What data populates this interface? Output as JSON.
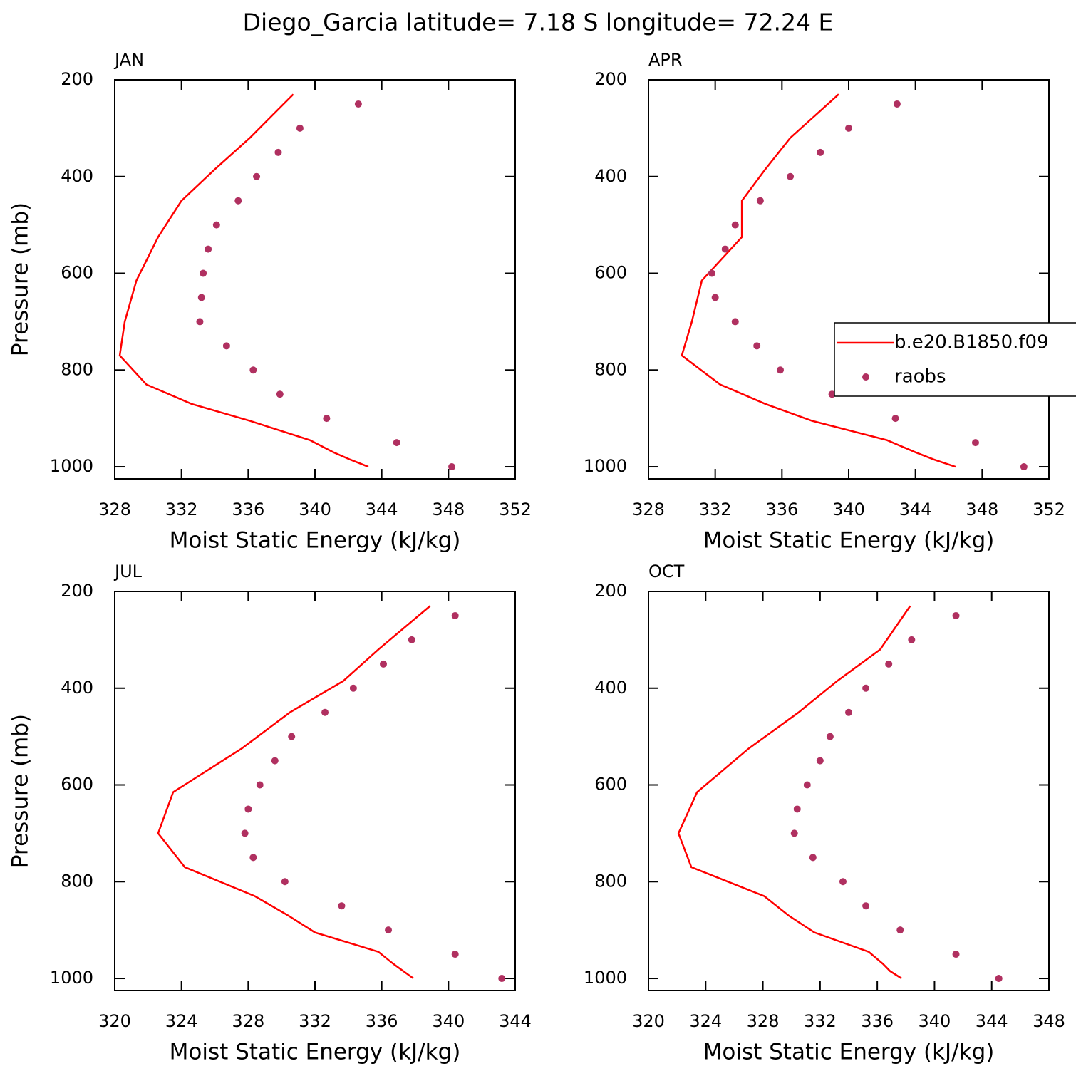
{
  "title": "Diego_Garcia  latitude= 7.18 S longitude= 72.24 E",
  "chart_data": [
    {
      "type": "line",
      "title": "JAN",
      "xlabel": "Moist Static Energy (kJ/kg)",
      "ylabel": "Pressure (mb)",
      "xlim": [
        328,
        352
      ],
      "xticks": [
        328,
        332,
        336,
        340,
        344,
        348,
        352
      ],
      "ylim": [
        1025,
        200
      ],
      "yticks": [
        200,
        400,
        600,
        800,
        1000
      ],
      "series": [
        {
          "color": "#ff0000",
          "style": "line",
          "pressure": [
            230,
            320,
            385,
            450,
            525,
            615,
            700,
            770,
            830,
            870,
            905,
            945,
            970,
            985,
            1000
          ],
          "values": [
            338.7,
            336.1,
            334.0,
            332.0,
            330.6,
            329.3,
            328.6,
            328.3,
            329.9,
            332.6,
            336.1,
            339.7,
            341.1,
            342.1,
            343.2
          ]
        },
        {
          "color": "#b03060",
          "style": "dots",
          "pressure": [
            250,
            300,
            350,
            400,
            450,
            500,
            550,
            600,
            650,
            700,
            750,
            800,
            850,
            900,
            950,
            1000
          ],
          "values": [
            342.6,
            339.1,
            337.8,
            336.5,
            335.4,
            334.1,
            333.6,
            333.3,
            333.2,
            333.1,
            334.7,
            336.3,
            337.9,
            340.7,
            344.9,
            348.2
          ]
        }
      ]
    },
    {
      "type": "line",
      "title": "APR",
      "xlabel": "Moist Static Energy (kJ/kg)",
      "legend": "right",
      "xlim": [
        328,
        352
      ],
      "xticks": [
        328,
        332,
        336,
        340,
        344,
        348,
        352
      ],
      "ylim": [
        1025,
        200
      ],
      "yticks": [
        200,
        400,
        600,
        800,
        1000
      ],
      "series": [
        {
          "name": "b.e20.B1850.f09",
          "color": "#ff0000",
          "style": "line",
          "pressure": [
            230,
            320,
            385,
            450,
            525,
            615,
            700,
            770,
            830,
            870,
            905,
            945,
            970,
            985,
            1000
          ],
          "values": [
            339.4,
            336.5,
            335.0,
            333.6,
            333.6,
            331.2,
            330.6,
            330.0,
            332.3,
            335.0,
            337.8,
            342.3,
            344.0,
            345.1,
            346.4
          ]
        },
        {
          "name": "raobs",
          "color": "#b03060",
          "style": "dots",
          "pressure": [
            250,
            300,
            350,
            400,
            450,
            500,
            550,
            600,
            650,
            700,
            750,
            800,
            850,
            900,
            950,
            1000
          ],
          "values": [
            342.9,
            340.0,
            338.3,
            336.5,
            334.7,
            333.2,
            332.6,
            331.8,
            332.0,
            333.2,
            334.5,
            335.9,
            339.0,
            342.8,
            347.6,
            350.5
          ]
        }
      ]
    },
    {
      "type": "line",
      "title": "JUL",
      "xlabel": "Moist Static Energy (kJ/kg)",
      "ylabel": "Pressure (mb)",
      "xlim": [
        320,
        344
      ],
      "xticks": [
        320,
        324,
        328,
        332,
        336,
        340,
        344
      ],
      "ylim": [
        1025,
        200
      ],
      "yticks": [
        200,
        400,
        600,
        800,
        1000
      ],
      "series": [
        {
          "color": "#ff0000",
          "style": "line",
          "pressure": [
            230,
            320,
            385,
            450,
            525,
            615,
            700,
            770,
            830,
            870,
            905,
            945,
            970,
            985,
            1000
          ],
          "values": [
            338.9,
            335.8,
            333.7,
            330.5,
            327.6,
            323.5,
            322.6,
            324.2,
            328.4,
            330.4,
            332.0,
            335.8,
            336.7,
            337.3,
            337.9
          ]
        },
        {
          "color": "#b03060",
          "style": "dots",
          "pressure": [
            250,
            300,
            350,
            400,
            450,
            500,
            550,
            600,
            650,
            700,
            750,
            800,
            850,
            900,
            950,
            1000
          ],
          "values": [
            340.4,
            337.8,
            336.1,
            334.3,
            332.6,
            330.6,
            329.6,
            328.7,
            328.0,
            327.8,
            328.3,
            330.2,
            333.6,
            336.4,
            340.4,
            343.2
          ]
        }
      ]
    },
    {
      "type": "line",
      "title": "OCT",
      "xlabel": "Moist Static Energy (kJ/kg)",
      "xlim": [
        320,
        348
      ],
      "xticks": [
        320,
        324,
        328,
        332,
        336,
        340,
        344,
        348
      ],
      "ylim": [
        1025,
        200
      ],
      "yticks": [
        200,
        400,
        600,
        800,
        1000
      ],
      "series": [
        {
          "color": "#ff0000",
          "style": "line",
          "pressure": [
            230,
            320,
            385,
            450,
            525,
            615,
            700,
            770,
            830,
            870,
            905,
            945,
            970,
            985,
            1000
          ],
          "values": [
            338.3,
            336.2,
            333.2,
            330.5,
            327.0,
            323.4,
            322.1,
            323.0,
            328.1,
            329.8,
            331.6,
            335.4,
            336.4,
            336.9,
            337.7
          ]
        },
        {
          "color": "#b03060",
          "style": "dots",
          "pressure": [
            250,
            300,
            350,
            400,
            450,
            500,
            550,
            600,
            650,
            700,
            750,
            800,
            850,
            900,
            950,
            1000
          ],
          "values": [
            341.5,
            338.4,
            336.8,
            335.2,
            334.0,
            332.7,
            332.0,
            331.1,
            330.4,
            330.2,
            331.5,
            333.6,
            335.2,
            337.6,
            341.5,
            344.5
          ]
        }
      ]
    }
  ]
}
